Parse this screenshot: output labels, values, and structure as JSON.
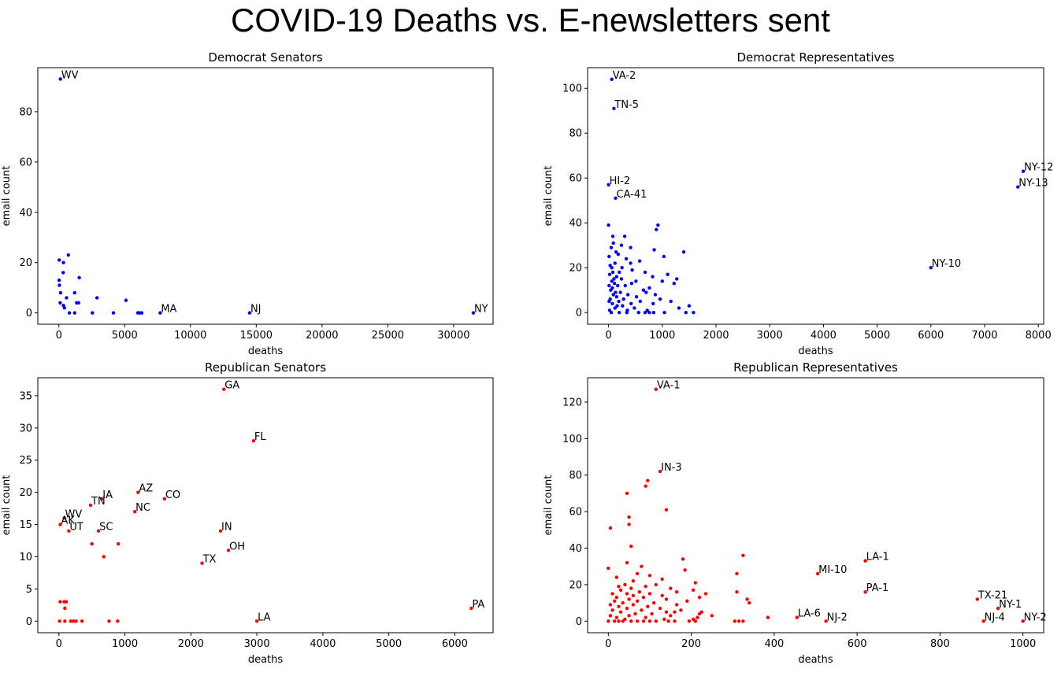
{
  "title": "COVID-19 Deaths vs. E-newsletters sent",
  "chart_data": [
    {
      "type": "scatter",
      "title": "Democrat Senators",
      "xlabel": "deaths",
      "ylabel": "email count",
      "color": "#0000ff",
      "xlim": [
        -1600,
        33000
      ],
      "ylim": [
        -4.5,
        97.5
      ],
      "xticks": [
        0,
        5000,
        10000,
        15000,
        20000,
        25000,
        30000
      ],
      "yticks": [
        0,
        20,
        40,
        60,
        80
      ],
      "points": [
        {
          "x": 120,
          "y": 93,
          "label": "WV"
        },
        {
          "x": 7700,
          "y": 0,
          "label": "MA"
        },
        {
          "x": 14500,
          "y": 0,
          "label": "NJ"
        },
        {
          "x": 31500,
          "y": 0,
          "label": "NY"
        },
        {
          "x": 30,
          "y": 21
        },
        {
          "x": 350,
          "y": 20
        },
        {
          "x": 720,
          "y": 23
        },
        {
          "x": 1550,
          "y": 14
        },
        {
          "x": 20,
          "y": 13
        },
        {
          "x": 330,
          "y": 16
        },
        {
          "x": 40,
          "y": 11
        },
        {
          "x": 130,
          "y": 8
        },
        {
          "x": 580,
          "y": 6
        },
        {
          "x": 1200,
          "y": 8
        },
        {
          "x": 2900,
          "y": 6
        },
        {
          "x": 5100,
          "y": 5
        },
        {
          "x": 100,
          "y": 4
        },
        {
          "x": 1350,
          "y": 4
        },
        {
          "x": 1500,
          "y": 4
        },
        {
          "x": 350,
          "y": 3
        },
        {
          "x": 420,
          "y": 2
        },
        {
          "x": 800,
          "y": 0
        },
        {
          "x": 1200,
          "y": 0
        },
        {
          "x": 2550,
          "y": 0
        },
        {
          "x": 4150,
          "y": 0
        },
        {
          "x": 6000,
          "y": 0
        },
        {
          "x": 6150,
          "y": 0
        },
        {
          "x": 6300,
          "y": 0
        }
      ]
    },
    {
      "type": "scatter",
      "title": "Democrat Representatives",
      "xlabel": "deaths",
      "ylabel": "email count",
      "color": "#0000ff",
      "xlim": [
        -390,
        8100
      ],
      "ylim": [
        -5.2,
        109.2
      ],
      "xticks": [
        0,
        1000,
        2000,
        3000,
        4000,
        5000,
        6000,
        7000,
        8000
      ],
      "yticks": [
        0,
        20,
        40,
        60,
        80,
        100
      ],
      "points": [
        {
          "x": 60,
          "y": 104,
          "label": "VA-2"
        },
        {
          "x": 100,
          "y": 91,
          "label": "TN-5"
        },
        {
          "x": 7720,
          "y": 63,
          "label": "NY-12"
        },
        {
          "x": 7620,
          "y": 56,
          "label": "NY-13"
        },
        {
          "x": 0,
          "y": 57,
          "label": "HI-2"
        },
        {
          "x": 130,
          "y": 51,
          "label": "CA-41"
        },
        {
          "x": 6000,
          "y": 20,
          "label": "NY-10"
        },
        {
          "x": 0,
          "y": 39
        },
        {
          "x": 920,
          "y": 39
        },
        {
          "x": 890,
          "y": 37
        },
        {
          "x": 80,
          "y": 34
        },
        {
          "x": 300,
          "y": 34
        },
        {
          "x": 90,
          "y": 31
        },
        {
          "x": 240,
          "y": 30
        },
        {
          "x": 50,
          "y": 29
        },
        {
          "x": 410,
          "y": 29
        },
        {
          "x": 850,
          "y": 28
        },
        {
          "x": 1400,
          "y": 27
        },
        {
          "x": 180,
          "y": 26
        },
        {
          "x": 1030,
          "y": 25
        },
        {
          "x": 330,
          "y": 24
        },
        {
          "x": 580,
          "y": 23
        },
        {
          "x": 120,
          "y": 22
        },
        {
          "x": 410,
          "y": 22
        },
        {
          "x": 30,
          "y": 21
        },
        {
          "x": 250,
          "y": 20
        },
        {
          "x": 440,
          "y": 19
        },
        {
          "x": 80,
          "y": 18
        },
        {
          "x": 680,
          "y": 18
        },
        {
          "x": 20,
          "y": 17
        },
        {
          "x": 1100,
          "y": 17
        },
        {
          "x": 150,
          "y": 16
        },
        {
          "x": 820,
          "y": 16
        },
        {
          "x": 240,
          "y": 15
        },
        {
          "x": 1270,
          "y": 15
        },
        {
          "x": 60,
          "y": 14
        },
        {
          "x": 510,
          "y": 14
        },
        {
          "x": 1000,
          "y": 14
        },
        {
          "x": 110,
          "y": 13
        },
        {
          "x": 430,
          "y": 13
        },
        {
          "x": 1220,
          "y": 13
        },
        {
          "x": 170,
          "y": 12
        },
        {
          "x": 310,
          "y": 12
        },
        {
          "x": 760,
          "y": 11
        },
        {
          "x": 40,
          "y": 10
        },
        {
          "x": 650,
          "y": 10
        },
        {
          "x": 220,
          "y": 9
        },
        {
          "x": 700,
          "y": 9
        },
        {
          "x": 90,
          "y": 8
        },
        {
          "x": 360,
          "y": 8
        },
        {
          "x": 870,
          "y": 8
        },
        {
          "x": 150,
          "y": 7
        },
        {
          "x": 520,
          "y": 7
        },
        {
          "x": 30,
          "y": 6
        },
        {
          "x": 280,
          "y": 6
        },
        {
          "x": 960,
          "y": 6
        },
        {
          "x": 190,
          "y": 5
        },
        {
          "x": 590,
          "y": 5
        },
        {
          "x": 1160,
          "y": 5
        },
        {
          "x": 70,
          "y": 4
        },
        {
          "x": 420,
          "y": 4
        },
        {
          "x": 830,
          "y": 4
        },
        {
          "x": 260,
          "y": 3
        },
        {
          "x": 1500,
          "y": 3
        },
        {
          "x": 120,
          "y": 2
        },
        {
          "x": 480,
          "y": 2
        },
        {
          "x": 1310,
          "y": 2
        },
        {
          "x": 20,
          "y": 1
        },
        {
          "x": 350,
          "y": 1
        },
        {
          "x": 720,
          "y": 1
        },
        {
          "x": 50,
          "y": 0
        },
        {
          "x": 200,
          "y": 0
        },
        {
          "x": 340,
          "y": 0
        },
        {
          "x": 560,
          "y": 0
        },
        {
          "x": 680,
          "y": 0
        },
        {
          "x": 760,
          "y": 0
        },
        {
          "x": 840,
          "y": 0
        },
        {
          "x": 1040,
          "y": 0
        },
        {
          "x": 1440,
          "y": 0
        },
        {
          "x": 1580,
          "y": 0
        },
        {
          "x": 10,
          "y": 25
        },
        {
          "x": 140,
          "y": 27
        },
        {
          "x": 60,
          "y": 20
        },
        {
          "x": 100,
          "y": 15
        },
        {
          "x": 200,
          "y": 18
        },
        {
          "x": 10,
          "y": 12
        },
        {
          "x": 130,
          "y": 9
        },
        {
          "x": 70,
          "y": 11
        },
        {
          "x": 160,
          "y": 3
        },
        {
          "x": 10,
          "y": 5
        }
      ]
    },
    {
      "type": "scatter",
      "title": "Republican Senators",
      "xlabel": "deaths",
      "ylabel": "email count",
      "color": "#ff0000",
      "xlim": [
        -320,
        6580
      ],
      "ylim": [
        -1.8,
        37.8
      ],
      "xticks": [
        0,
        1000,
        2000,
        3000,
        4000,
        5000,
        6000
      ],
      "yticks": [
        0,
        5,
        10,
        15,
        20,
        25,
        30,
        35
      ],
      "points": [
        {
          "x": 2500,
          "y": 36,
          "label": "GA"
        },
        {
          "x": 2950,
          "y": 28,
          "label": "FL"
        },
        {
          "x": 1200,
          "y": 20,
          "label": "AZ"
        },
        {
          "x": 1600,
          "y": 19,
          "label": "CO"
        },
        {
          "x": 650,
          "y": 19,
          "label": "IA"
        },
        {
          "x": 480,
          "y": 18,
          "label": "TN"
        },
        {
          "x": 1150,
          "y": 17,
          "label": "NC"
        },
        {
          "x": 80,
          "y": 16,
          "label": "WV"
        },
        {
          "x": 20,
          "y": 15,
          "label": "AK"
        },
        {
          "x": 150,
          "y": 14,
          "label": "UT"
        },
        {
          "x": 600,
          "y": 14,
          "label": "SC"
        },
        {
          "x": 2450,
          "y": 14,
          "label": "IN"
        },
        {
          "x": 2570,
          "y": 11,
          "label": "OH"
        },
        {
          "x": 2170,
          "y": 9,
          "label": "TX"
        },
        {
          "x": 6250,
          "y": 2,
          "label": "PA"
        },
        {
          "x": 3000,
          "y": 0,
          "label": "LA"
        },
        {
          "x": 500,
          "y": 12
        },
        {
          "x": 900,
          "y": 12
        },
        {
          "x": 680,
          "y": 10
        },
        {
          "x": 20,
          "y": 3
        },
        {
          "x": 80,
          "y": 3
        },
        {
          "x": 110,
          "y": 3
        },
        {
          "x": 90,
          "y": 2
        },
        {
          "x": 10,
          "y": 0
        },
        {
          "x": 90,
          "y": 0
        },
        {
          "x": 180,
          "y": 0
        },
        {
          "x": 220,
          "y": 0
        },
        {
          "x": 260,
          "y": 0
        },
        {
          "x": 350,
          "y": 0
        },
        {
          "x": 760,
          "y": 0
        },
        {
          "x": 890,
          "y": 0
        }
      ]
    },
    {
      "type": "scatter",
      "title": "Republican Representatives",
      "xlabel": "deaths",
      "ylabel": "email count",
      "color": "#ff0000",
      "xlim": [
        -50,
        1050
      ],
      "ylim": [
        -6.35,
        133.35
      ],
      "xticks": [
        0,
        200,
        400,
        600,
        800,
        1000
      ],
      "yticks": [
        0,
        20,
        40,
        60,
        80,
        100,
        120
      ],
      "points": [
        {
          "x": 115,
          "y": 127,
          "label": "VA-1"
        },
        {
          "x": 125,
          "y": 82,
          "label": "IN-3"
        },
        {
          "x": 620,
          "y": 33,
          "label": "LA-1"
        },
        {
          "x": 505,
          "y": 26,
          "label": "MI-10"
        },
        {
          "x": 620,
          "y": 16,
          "label": "PA-1"
        },
        {
          "x": 890,
          "y": 12,
          "label": "TX-21"
        },
        {
          "x": 940,
          "y": 7,
          "label": "NY-1"
        },
        {
          "x": 455,
          "y": 2,
          "label": "LA-6"
        },
        {
          "x": 525,
          "y": 0,
          "label": "NJ-2"
        },
        {
          "x": 905,
          "y": 0,
          "label": "NJ-4"
        },
        {
          "x": 1000,
          "y": 0,
          "label": "NY-2"
        },
        {
          "x": 95,
          "y": 77
        },
        {
          "x": 90,
          "y": 74
        },
        {
          "x": 45,
          "y": 70
        },
        {
          "x": 140,
          "y": 61
        },
        {
          "x": 50,
          "y": 57
        },
        {
          "x": 5,
          "y": 51
        },
        {
          "x": 50,
          "y": 53
        },
        {
          "x": 55,
          "y": 41
        },
        {
          "x": 325,
          "y": 36
        },
        {
          "x": 180,
          "y": 34
        },
        {
          "x": 0,
          "y": 29
        },
        {
          "x": 45,
          "y": 32
        },
        {
          "x": 80,
          "y": 30
        },
        {
          "x": 185,
          "y": 28
        },
        {
          "x": 310,
          "y": 26
        },
        {
          "x": 70,
          "y": 26
        },
        {
          "x": 100,
          "y": 25
        },
        {
          "x": 20,
          "y": 24
        },
        {
          "x": 130,
          "y": 23
        },
        {
          "x": 60,
          "y": 22
        },
        {
          "x": 210,
          "y": 21
        },
        {
          "x": 40,
          "y": 20
        },
        {
          "x": 115,
          "y": 20
        },
        {
          "x": 25,
          "y": 19
        },
        {
          "x": 90,
          "y": 19
        },
        {
          "x": 150,
          "y": 18
        },
        {
          "x": 55,
          "y": 18
        },
        {
          "x": 205,
          "y": 17
        },
        {
          "x": 30,
          "y": 17
        },
        {
          "x": 75,
          "y": 16
        },
        {
          "x": 310,
          "y": 16
        },
        {
          "x": 165,
          "y": 16
        },
        {
          "x": 10,
          "y": 15
        },
        {
          "x": 45,
          "y": 15
        },
        {
          "x": 100,
          "y": 15
        },
        {
          "x": 235,
          "y": 15
        },
        {
          "x": 60,
          "y": 14
        },
        {
          "x": 130,
          "y": 14
        },
        {
          "x": 20,
          "y": 13
        },
        {
          "x": 85,
          "y": 13
        },
        {
          "x": 220,
          "y": 13
        },
        {
          "x": 50,
          "y": 12
        },
        {
          "x": 140,
          "y": 12
        },
        {
          "x": 335,
          "y": 12
        },
        {
          "x": 15,
          "y": 11
        },
        {
          "x": 70,
          "y": 11
        },
        {
          "x": 190,
          "y": 11
        },
        {
          "x": 35,
          "y": 10
        },
        {
          "x": 110,
          "y": 10
        },
        {
          "x": 340,
          "y": 10
        },
        {
          "x": 5,
          "y": 9
        },
        {
          "x": 60,
          "y": 9
        },
        {
          "x": 165,
          "y": 9
        },
        {
          "x": 95,
          "y": 8
        },
        {
          "x": 25,
          "y": 8
        },
        {
          "x": 125,
          "y": 7
        },
        {
          "x": 45,
          "y": 7
        },
        {
          "x": 175,
          "y": 6
        },
        {
          "x": 10,
          "y": 6
        },
        {
          "x": 80,
          "y": 6
        },
        {
          "x": 140,
          "y": 5
        },
        {
          "x": 30,
          "y": 5
        },
        {
          "x": 160,
          "y": 5
        },
        {
          "x": 225,
          "y": 5
        },
        {
          "x": 65,
          "y": 4
        },
        {
          "x": 105,
          "y": 4
        },
        {
          "x": 220,
          "y": 4
        },
        {
          "x": 5,
          "y": 3
        },
        {
          "x": 50,
          "y": 3
        },
        {
          "x": 150,
          "y": 3
        },
        {
          "x": 250,
          "y": 3
        },
        {
          "x": 20,
          "y": 2
        },
        {
          "x": 90,
          "y": 2
        },
        {
          "x": 215,
          "y": 2
        },
        {
          "x": 385,
          "y": 2
        },
        {
          "x": 40,
          "y": 1
        },
        {
          "x": 135,
          "y": 1
        },
        {
          "x": 205,
          "y": 1
        },
        {
          "x": 0,
          "y": 0
        },
        {
          "x": 15,
          "y": 0
        },
        {
          "x": 25,
          "y": 0
        },
        {
          "x": 35,
          "y": 0
        },
        {
          "x": 55,
          "y": 0
        },
        {
          "x": 70,
          "y": 0
        },
        {
          "x": 85,
          "y": 0
        },
        {
          "x": 100,
          "y": 0
        },
        {
          "x": 115,
          "y": 0
        },
        {
          "x": 145,
          "y": 0
        },
        {
          "x": 160,
          "y": 0
        },
        {
          "x": 195,
          "y": 0
        },
        {
          "x": 210,
          "y": 0
        },
        {
          "x": 305,
          "y": 0
        },
        {
          "x": 315,
          "y": 0
        },
        {
          "x": 325,
          "y": 0
        }
      ]
    }
  ]
}
